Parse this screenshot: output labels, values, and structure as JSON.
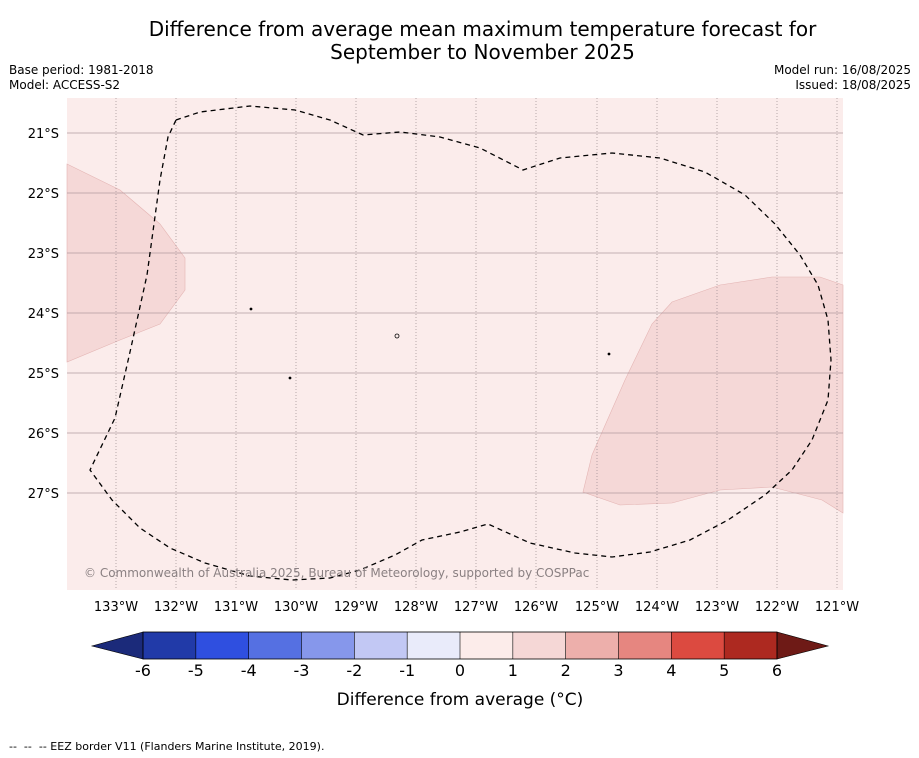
{
  "title_line1": "Difference from average mean maximum temperature forecast for",
  "title_line2": "September to November 2025",
  "meta": {
    "base_period": "Base period: 1981-2018",
    "model": "Model: ACCESS-S2",
    "model_run": "Model run: 16/08/2025",
    "issued": "Issued: 18/08/2025"
  },
  "map": {
    "lon_labels": [
      "133°W",
      "132°W",
      "131°W",
      "130°W",
      "129°W",
      "128°W",
      "127°W",
      "126°W",
      "125°W",
      "124°W",
      "123°W",
      "122°W",
      "121°W"
    ],
    "lat_labels": [
      "21°S",
      "22°S",
      "23°S",
      "24°S",
      "25°S",
      "26°S",
      "27°S"
    ],
    "copyright": "© Commonwealth of Australia 2025, Bureau of Meteorology, supported by COSPPac",
    "colors": {
      "background_0_to_1": "#fbeceb",
      "anomaly_1_to_2": "#f5d8d7",
      "eez_border": "#000000"
    }
  },
  "colorbar": {
    "ticks": [
      "-6",
      "-5",
      "-4",
      "-3",
      "-2",
      "-1",
      "0",
      "1",
      "2",
      "3",
      "4",
      "5",
      "6"
    ],
    "colors": [
      "#213aa8",
      "#2f4fe0",
      "#5570e2",
      "#8697eb",
      "#c2c8f4",
      "#e9ebfa",
      "#fcecea",
      "#f5d7d6",
      "#edafab",
      "#e68680",
      "#dc4a40",
      "#ad2920"
    ],
    "under_color": "#1b2a7a",
    "over_color": "#6e1a16",
    "title": "Difference from average (°C)"
  },
  "footnote": "--  --  -- EEZ border V11 (Flanders Marine Institute, 2019)."
}
